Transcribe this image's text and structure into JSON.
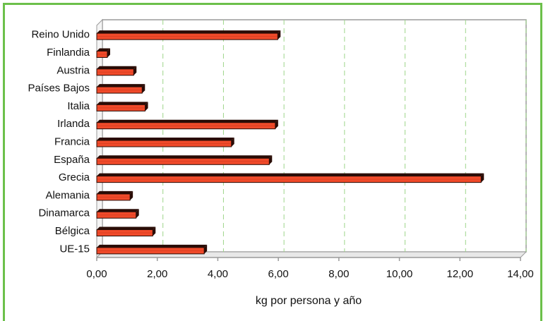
{
  "chart_data": {
    "type": "bar",
    "orientation": "horizontal",
    "title": "",
    "xlabel": "kg por persona y año",
    "ylabel": "",
    "categories": [
      "Reino Unido",
      "Finlandia",
      "Austria",
      "Países Bajos",
      "Italia",
      "Irlanda",
      "Francia",
      "España",
      "Grecia",
      "Alemania",
      "Dinamarca",
      "Bélgica",
      "UE-15"
    ],
    "values": [
      5.98,
      0.35,
      1.22,
      1.5,
      1.6,
      5.9,
      4.45,
      5.7,
      12.7,
      1.1,
      1.3,
      1.85,
      3.55
    ],
    "xlim": [
      0,
      14
    ],
    "xticks": [
      "0,00",
      "2,00",
      "4,00",
      "6,00",
      "8,00",
      "10,00",
      "12,00",
      "14,00"
    ],
    "grid": "vertical dashed",
    "legend": "none",
    "colors": {
      "bar": "#f04a2a",
      "bar_top": "#d03a1e",
      "bar_shadow": "#2a0c06",
      "frame": "#6cc04a",
      "grid": "#9ed68a",
      "axis": "#9a9a9a"
    }
  }
}
